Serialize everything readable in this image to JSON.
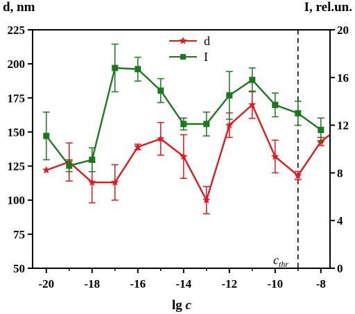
{
  "chart_data": {
    "type": "line",
    "xlabel_main": "lg ",
    "xlabel_var": "c",
    "ylabel_left": "d, nm",
    "ylabel_right": "I, rel.un.",
    "xlim": [
      -20.6,
      -7.6
    ],
    "ylim_left": [
      50,
      225
    ],
    "ylim_right": [
      0,
      20
    ],
    "x_ticks": [
      -20,
      -18,
      -16,
      -14,
      -12,
      -10,
      -8
    ],
    "y_left_ticks": [
      50,
      75,
      100,
      125,
      150,
      175,
      200,
      225
    ],
    "y_right_ticks": [
      0,
      4,
      8,
      12,
      16,
      20
    ],
    "threshold": {
      "x": -9,
      "label_main": "c",
      "label_sub": "thr"
    },
    "series": [
      {
        "name": "d",
        "axis": "left",
        "color": "#e8151b",
        "marker": "star",
        "x": [
          -20,
          -19,
          -18,
          -17,
          -16,
          -15,
          -14,
          -13,
          -12,
          -11,
          -10,
          -9,
          -8,
          -7.6
        ],
        "y": [
          122,
          128,
          113,
          113,
          139,
          145,
          132,
          100,
          155,
          170,
          132,
          118,
          143,
          148
        ],
        "err": [
          0,
          14,
          15,
          13,
          2,
          12,
          16,
          10,
          9,
          10,
          12,
          3,
          3,
          0
        ]
      },
      {
        "name": "I",
        "axis": "right",
        "color": "#1a7a1a",
        "marker": "square",
        "x": [
          -20,
          -19,
          -18,
          -17,
          -16,
          -15,
          -14,
          -13,
          -12,
          -11,
          -10,
          -9,
          -8
        ],
        "y": [
          11.1,
          8.6,
          9.1,
          16.8,
          16.7,
          14.9,
          12.1,
          12.1,
          14.5,
          15.8,
          13.7,
          13.0,
          11.6
        ],
        "err": [
          2.0,
          0.5,
          1.0,
          2.0,
          1.0,
          1.0,
          0.5,
          1.0,
          2.0,
          1.0,
          1.0,
          1.0,
          1.0
        ]
      }
    ]
  }
}
